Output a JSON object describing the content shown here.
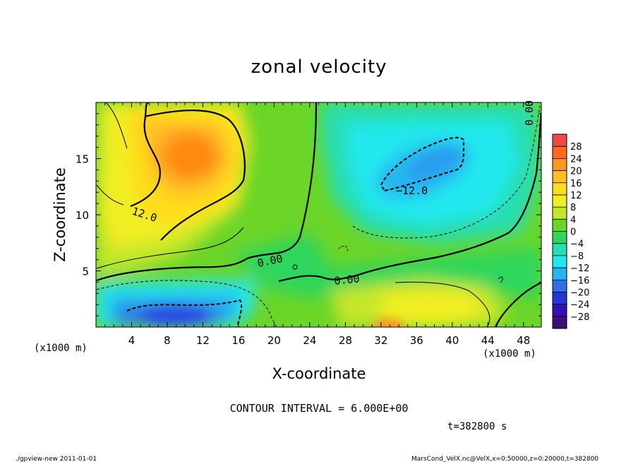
{
  "chart_data": {
    "type": "heatmap",
    "title": "zonal velocity",
    "xlabel": "X-coordinate",
    "ylabel": "Z-coordinate",
    "x_unit": "(x1000 m)",
    "z_unit": "(x1000 m)",
    "xlim": [
      0,
      50
    ],
    "zlim": [
      0,
      20
    ],
    "x_ticks": [
      "4",
      "8",
      "12",
      "16",
      "20",
      "24",
      "28",
      "32",
      "36",
      "40",
      "44",
      "48"
    ],
    "z_ticks": [
      "5",
      "10",
      "15"
    ],
    "colorbar": {
      "levels": [
        "28",
        "24",
        "20",
        "16",
        "12",
        "8",
        "4",
        "0",
        "−4",
        "−8",
        "−12",
        "−16",
        "−20",
        "−24",
        "−28"
      ],
      "colors": [
        "#f04848",
        "#ff6a1a",
        "#ff9620",
        "#ffbe22",
        "#ffdc1e",
        "#f0ee24",
        "#c4e62a",
        "#6bd528",
        "#2ed65c",
        "#26deae",
        "#22e8ee",
        "#26b4f0",
        "#2f6ee6",
        "#2636d4",
        "#3012b8",
        "#3e0e74"
      ]
    },
    "contour_labels": [
      "12.0",
      "0.00",
      "0.00",
      "−12.0",
      "0.00"
    ],
    "features": [
      {
        "name": "positive core",
        "x": 11,
        "z": 15,
        "value": 16
      },
      {
        "name": "negative core",
        "x": 36,
        "z": 14,
        "value": -12
      },
      {
        "name": "low-level negative",
        "x": 10,
        "z": 1,
        "value": -14
      },
      {
        "name": "surface positive",
        "x": 33,
        "z": 0.5,
        "value": 14
      }
    ],
    "contour_interval": "CONTOUR INTERVAL = 6.000E+00",
    "time": "t=382800 s"
  },
  "footer": {
    "left": "./gpview-new  2011-01-01",
    "right": "MarsCond_VelX.nc@VelX,x=0:50000,z=0:20000,t=382800"
  }
}
